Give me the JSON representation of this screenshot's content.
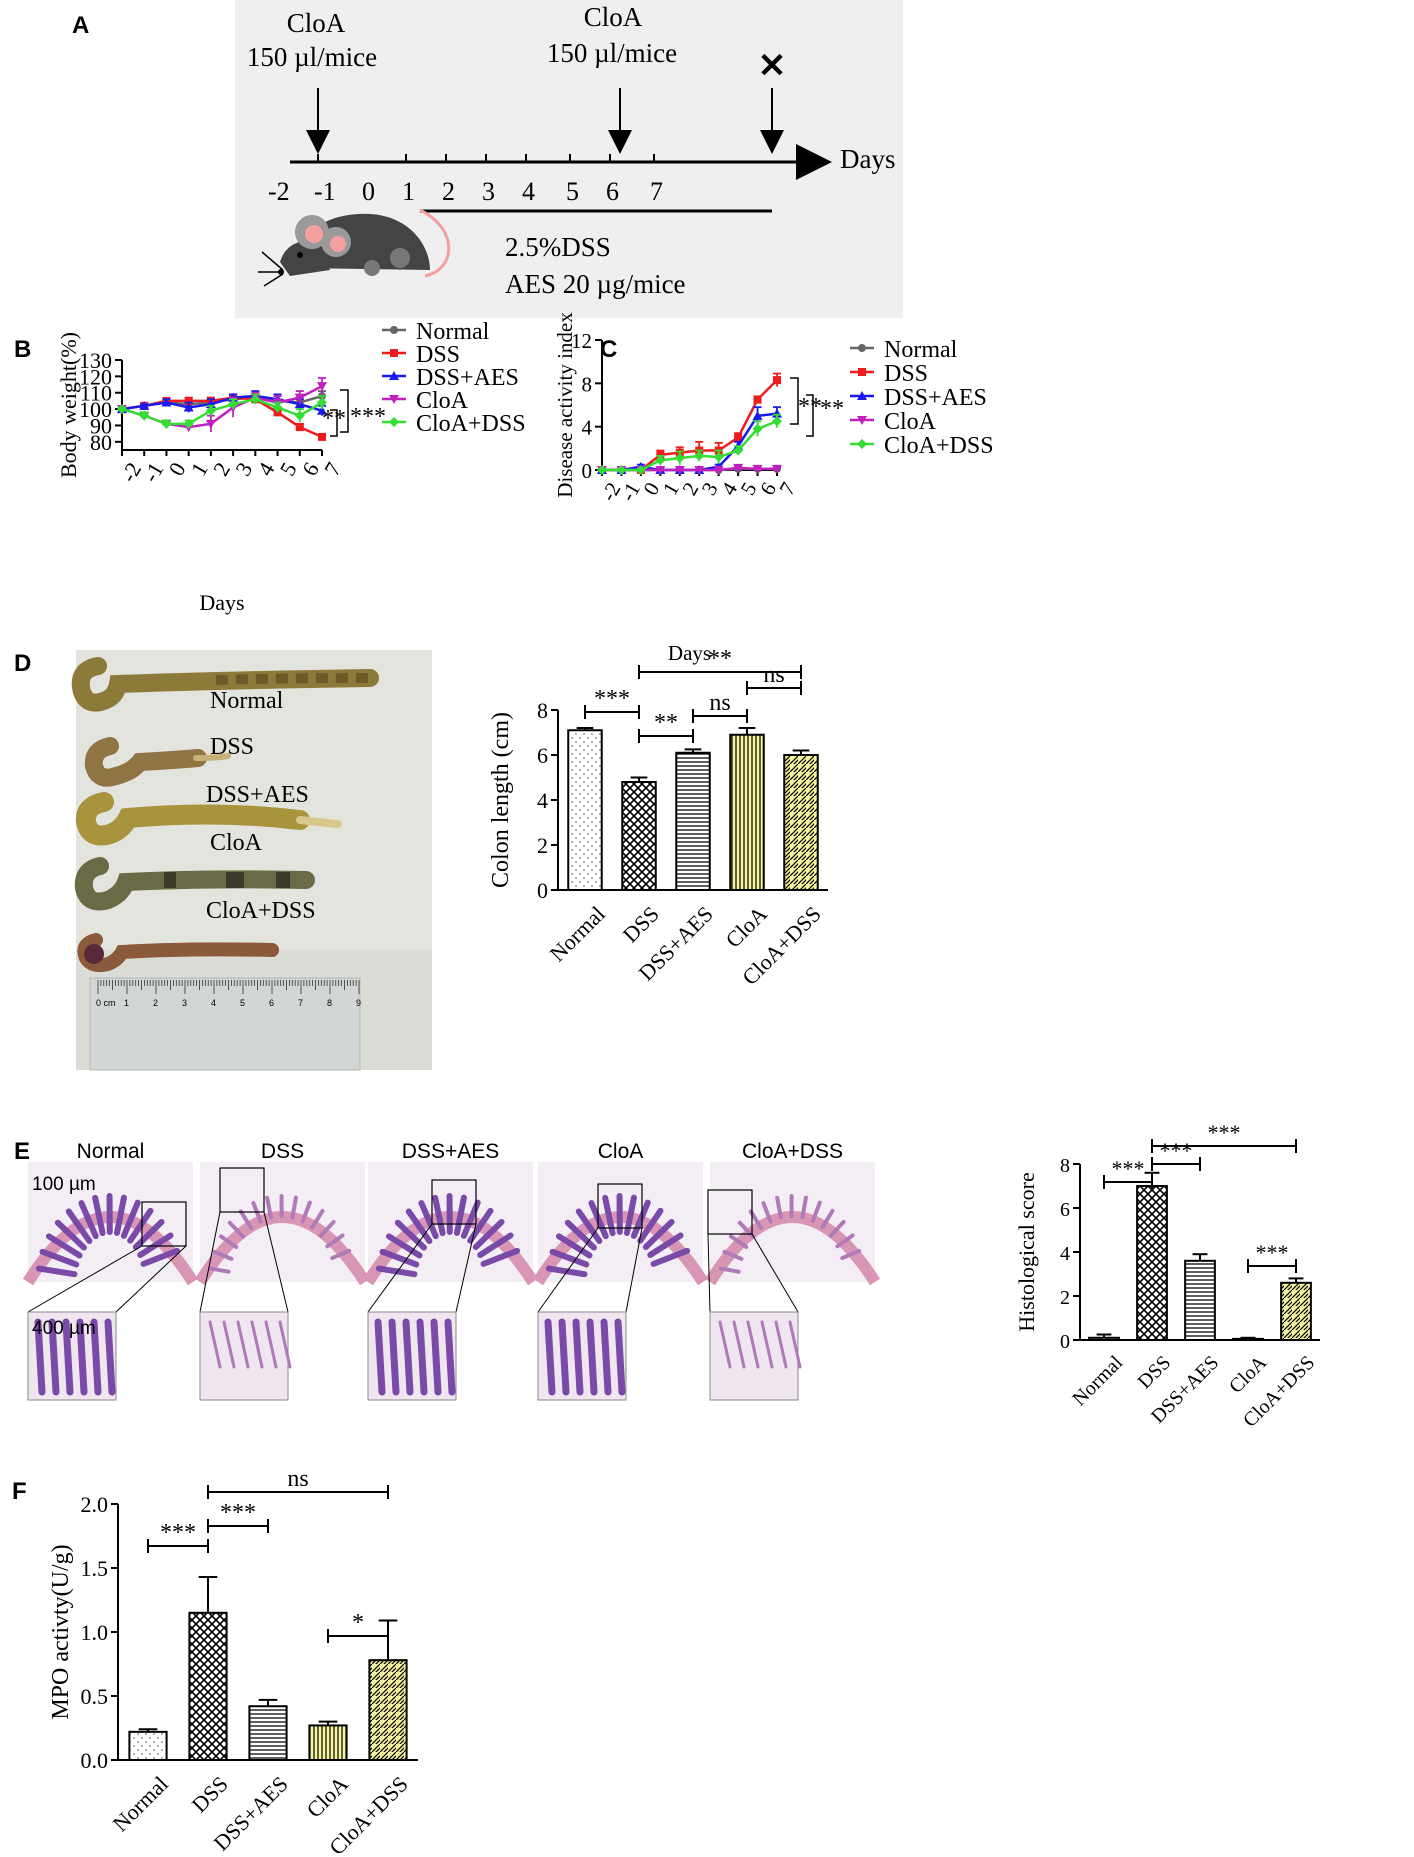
{
  "panels": {
    "A": {
      "label": "A"
    },
    "B": {
      "label": "B"
    },
    "C": {
      "label": "C"
    },
    "D": {
      "label": "D"
    },
    "E": {
      "label": "E"
    },
    "F": {
      "label": "F"
    }
  },
  "colors": {
    "normal": "#666666",
    "dss": "#ee1c1c",
    "dss_aes": "#1a1aee",
    "cloa": "#c020c0",
    "cloa_dss": "#33dd33",
    "bar_yellow": "#f6f39a",
    "schematic_bg": "#efefef"
  },
  "schematic": {
    "cloa_left_top": "CloA",
    "cloa_left_bottom": "150 µl/mice",
    "cloa_mid_top": "CloA",
    "cloa_mid_bottom": "150 µl/mice",
    "end_mark": "✕",
    "axis_label": "Days",
    "days": [
      "-2",
      "-1",
      "0",
      "1",
      "2",
      "3",
      "4",
      "5",
      "6",
      "7"
    ],
    "treatment_line1": "2.5%DSS",
    "treatment_line2": "AES 20 µg/mice",
    "mouse_icon": "mouse-icon"
  },
  "photo_labels": {
    "colon_photo": [
      "Normal",
      "DSS",
      "DSS+AES",
      "CloA",
      "CloA+DSS"
    ],
    "ruler_numbers": [
      "0 cm",
      "1",
      "2",
      "3",
      "4",
      "5",
      "6",
      "7",
      "8",
      "9"
    ],
    "histology_titles": [
      "Normal",
      "DSS",
      "DSS+AES",
      "CloA",
      "CloA+DSS"
    ],
    "scale_top": "100 µm",
    "scale_bottom": "400 µm"
  },
  "chart_data": [
    {
      "id": "B",
      "type": "line",
      "ylabel": "Body weight(%)",
      "xlabel": "Days",
      "x": [
        -2,
        -1,
        0,
        1,
        2,
        3,
        4,
        5,
        6,
        7
      ],
      "ylim": [
        75,
        130
      ],
      "yticks": [
        80,
        90,
        100,
        110,
        120,
        130
      ],
      "series": [
        {
          "name": "Normal",
          "values": [
            100,
            102,
            104,
            103,
            104,
            106,
            107,
            105,
            104,
            108
          ],
          "err": [
            1,
            1,
            2,
            2,
            2,
            2,
            2,
            3,
            3,
            3
          ]
        },
        {
          "name": "DSS",
          "values": [
            100,
            102,
            105,
            105,
            105,
            107,
            106,
            98,
            89,
            83
          ],
          "err": [
            1,
            1,
            1,
            2,
            2,
            2,
            2,
            2,
            2,
            1
          ]
        },
        {
          "name": "DSS+AES",
          "values": [
            100,
            102,
            104,
            101,
            103,
            107,
            108,
            106,
            103,
            99
          ],
          "err": [
            1,
            1,
            2,
            3,
            3,
            2,
            3,
            3,
            3,
            3
          ]
        },
        {
          "name": "CloA",
          "values": [
            100,
            96,
            91,
            89,
            91,
            101,
            107,
            104,
            107,
            114
          ],
          "err": [
            1,
            2,
            2,
            2,
            5,
            6,
            3,
            4,
            4,
            5
          ]
        },
        {
          "name": "CloA+DSS",
          "values": [
            100,
            96,
            91,
            91,
            99,
            103,
            106,
            101,
            96,
            104
          ],
          "err": [
            1,
            2,
            2,
            2,
            3,
            3,
            3,
            3,
            4,
            4
          ]
        }
      ],
      "significance": [
        "**",
        "***"
      ]
    },
    {
      "id": "C",
      "type": "line",
      "ylabel": "Disease activity index",
      "xlabel": "Days",
      "x": [
        -2,
        -1,
        0,
        1,
        2,
        3,
        4,
        5,
        6,
        7
      ],
      "ylim": [
        0,
        12
      ],
      "yticks": [
        0,
        4,
        8,
        12
      ],
      "series": [
        {
          "name": "Normal",
          "values": [
            0,
            0,
            0,
            0,
            0,
            0,
            0,
            0.1,
            0.1,
            0.1
          ],
          "err": [
            0,
            0,
            0,
            0,
            0,
            0,
            0,
            0.1,
            0.1,
            0.1
          ]
        },
        {
          "name": "DSS",
          "values": [
            0,
            0,
            0,
            1.4,
            1.6,
            1.8,
            1.8,
            3.0,
            6.5,
            8.3
          ],
          "err": [
            0,
            0,
            0,
            0.4,
            0.5,
            0.8,
            0.7,
            0.4,
            0.3,
            0.6
          ]
        },
        {
          "name": "DSS+AES",
          "values": [
            0,
            0,
            0.3,
            0,
            0,
            0,
            0.3,
            2.2,
            5.0,
            5.2
          ],
          "err": [
            0,
            0,
            0.2,
            0,
            0,
            0,
            0.2,
            0.4,
            0.8,
            0.6
          ]
        },
        {
          "name": "CloA",
          "values": [
            0,
            0,
            0,
            0,
            0,
            0,
            0,
            0.2,
            0.1,
            0.1
          ],
          "err": [
            0,
            0,
            0,
            0,
            0,
            0,
            0,
            0.1,
            0.1,
            0.1
          ]
        },
        {
          "name": "CloA+DSS",
          "values": [
            0,
            0,
            0,
            0.9,
            1.1,
            1.3,
            1.2,
            1.8,
            3.8,
            4.5
          ],
          "err": [
            0,
            0,
            0,
            0.4,
            0.6,
            0.5,
            0.6,
            0.4,
            0.7,
            0.6
          ]
        }
      ],
      "significance": [
        "**",
        "**"
      ]
    },
    {
      "id": "D",
      "type": "bar",
      "ylabel": "Colon length (cm)",
      "categories": [
        "Normal",
        "DSS",
        "DSS+AES",
        "CloA",
        "CloA+DSS"
      ],
      "values": [
        7.1,
        4.8,
        6.1,
        6.9,
        6.0
      ],
      "err": [
        0.1,
        0.2,
        0.15,
        0.3,
        0.2
      ],
      "ylim": [
        0,
        8
      ],
      "yticks": [
        0,
        2,
        4,
        6,
        8
      ],
      "significance": [
        {
          "from": "Normal",
          "to": "DSS",
          "label": "***"
        },
        {
          "from": "DSS",
          "to": "DSS+AES",
          "label": "**"
        },
        {
          "from": "DSS+AES",
          "to": "CloA",
          "label": "ns"
        },
        {
          "from": "CloA",
          "to": "CloA+DSS",
          "label": "ns"
        },
        {
          "from": "DSS",
          "to": "CloA+DSS",
          "label": "**"
        }
      ]
    },
    {
      "id": "E",
      "type": "bar",
      "ylabel": "Histological score",
      "categories": [
        "Normal",
        "DSS",
        "DSS+AES",
        "CloA",
        "CloA+DSS"
      ],
      "values": [
        0.1,
        7.0,
        3.6,
        0.05,
        2.6
      ],
      "err": [
        0.15,
        0.6,
        0.3,
        0.05,
        0.2
      ],
      "ylim": [
        0,
        8
      ],
      "yticks": [
        0,
        2,
        4,
        6,
        8
      ],
      "significance": [
        {
          "from": "Normal",
          "to": "DSS",
          "label": "***"
        },
        {
          "from": "DSS",
          "to": "DSS+AES",
          "label": "***"
        },
        {
          "from": "CloA",
          "to": "CloA+DSS",
          "label": "***"
        },
        {
          "from": "DSS",
          "to": "CloA+DSS",
          "label": "***"
        }
      ]
    },
    {
      "id": "F",
      "type": "bar",
      "ylabel": "MPO activty(U/g)",
      "categories": [
        "Normal",
        "DSS",
        "DSS+AES",
        "CloA",
        "CloA+DSS"
      ],
      "values": [
        0.22,
        1.15,
        0.42,
        0.27,
        0.78
      ],
      "err": [
        0.02,
        0.28,
        0.05,
        0.03,
        0.31
      ],
      "ylim": [
        0,
        2.0
      ],
      "yticks": [
        "0.0",
        "0.5",
        "1.0",
        "1.5",
        "2.0"
      ],
      "significance": [
        {
          "from": "Normal",
          "to": "DSS",
          "label": "***"
        },
        {
          "from": "DSS",
          "to": "DSS+AES",
          "label": "***"
        },
        {
          "from": "CloA",
          "to": "CloA+DSS",
          "label": "*"
        },
        {
          "from": "DSS",
          "to": "CloA+DSS",
          "label": "ns"
        }
      ]
    }
  ]
}
